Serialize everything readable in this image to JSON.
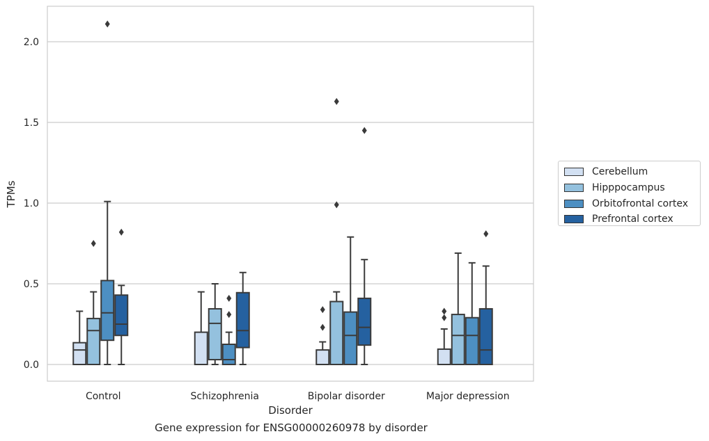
{
  "caption": "Gene expression for ENSG00000260978 by disorder",
  "chart_data": {
    "type": "box",
    "xlabel": "Disorder",
    "ylabel": "TPMs",
    "ylim": [
      -0.1,
      2.23
    ],
    "yticks": [
      0.0,
      0.5,
      1.0,
      1.5,
      2.0
    ],
    "ytick_labels": [
      "0.0",
      "0.5",
      "1.0",
      "1.5",
      "2.0"
    ],
    "grid": "horizontal",
    "legend_placement": "right",
    "categories": [
      "Control",
      "Schizophrenia",
      "Bipolar disorder",
      "Major depression"
    ],
    "series": [
      {
        "name": "Cerebellum",
        "color": "#d2e0f2",
        "boxes": [
          {
            "whislo": 0.0,
            "q1": 0.0,
            "med": 0.09,
            "q3": 0.135,
            "whishi": 0.33,
            "fliers": []
          },
          {
            "whislo": 0.0,
            "q1": 0.0,
            "med": 0.0,
            "q3": 0.2,
            "whishi": 0.45,
            "fliers": []
          },
          {
            "whislo": 0.0,
            "q1": 0.0,
            "med": 0.0,
            "q3": 0.09,
            "whishi": 0.14,
            "fliers": [
              0.23,
              0.34
            ]
          },
          {
            "whislo": 0.0,
            "q1": 0.0,
            "med": 0.0,
            "q3": 0.095,
            "whishi": 0.22,
            "fliers": [
              0.29,
              0.33
            ]
          }
        ]
      },
      {
        "name": "Hipppocampus",
        "color": "#94c1de",
        "boxes": [
          {
            "whislo": 0.0,
            "q1": 0.0,
            "med": 0.21,
            "q3": 0.285,
            "whishi": 0.45,
            "fliers": [
              0.75
            ]
          },
          {
            "whislo": 0.0,
            "q1": 0.03,
            "med": 0.255,
            "q3": 0.345,
            "whishi": 0.5,
            "fliers": []
          },
          {
            "whislo": 0.0,
            "q1": 0.0,
            "med": 0.0,
            "q3": 0.39,
            "whishi": 0.45,
            "fliers": [
              0.99,
              1.63
            ]
          },
          {
            "whislo": 0.0,
            "q1": 0.0,
            "med": 0.18,
            "q3": 0.31,
            "whishi": 0.69,
            "fliers": []
          }
        ]
      },
      {
        "name": "Orbitofrontal cortex",
        "color": "#4d8fc2",
        "boxes": [
          {
            "whislo": 0.0,
            "q1": 0.15,
            "med": 0.32,
            "q3": 0.52,
            "whishi": 1.01,
            "fliers": [
              2.11
            ]
          },
          {
            "whislo": 0.0,
            "q1": 0.0,
            "med": 0.03,
            "q3": 0.125,
            "whishi": 0.2,
            "fliers": [
              0.31,
              0.41
            ]
          },
          {
            "whislo": 0.0,
            "q1": 0.0,
            "med": 0.18,
            "q3": 0.325,
            "whishi": 0.79,
            "fliers": []
          },
          {
            "whislo": 0.0,
            "q1": 0.0,
            "med": 0.18,
            "q3": 0.29,
            "whishi": 0.63,
            "fliers": []
          }
        ]
      },
      {
        "name": "Prefrontal cortex",
        "color": "#2561a0",
        "boxes": [
          {
            "whislo": 0.0,
            "q1": 0.18,
            "med": 0.25,
            "q3": 0.43,
            "whishi": 0.49,
            "fliers": [
              0.82
            ]
          },
          {
            "whislo": 0.0,
            "q1": 0.105,
            "med": 0.21,
            "q3": 0.445,
            "whishi": 0.57,
            "fliers": []
          },
          {
            "whislo": 0.0,
            "q1": 0.12,
            "med": 0.23,
            "q3": 0.41,
            "whishi": 0.65,
            "fliers": [
              1.45
            ]
          },
          {
            "whislo": 0.0,
            "q1": 0.0,
            "med": 0.09,
            "q3": 0.345,
            "whishi": 0.61,
            "fliers": [
              0.81
            ]
          }
        ]
      }
    ]
  }
}
